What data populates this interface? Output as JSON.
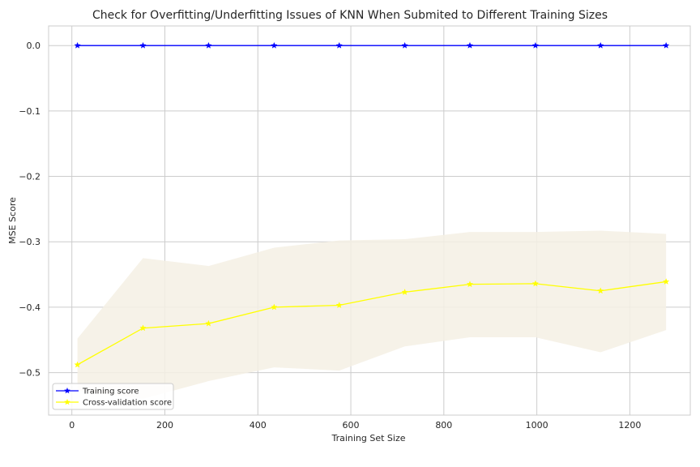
{
  "chart_data": {
    "type": "line",
    "title": "Check for Overfitting/Underfitting Issues of KNN When Submited to Different Training Sizes",
    "xlabel": "Training Set Size",
    "ylabel": "MSE Score",
    "xlim": [
      -50,
      1330
    ],
    "ylim": [
      -0.565,
      0.03
    ],
    "xticks": [
      0,
      200,
      400,
      600,
      800,
      1000,
      1200
    ],
    "yticks": [
      0.0,
      -0.1,
      -0.2,
      -0.3,
      -0.4,
      -0.5
    ],
    "xtick_labels": [
      "0",
      "200",
      "400",
      "600",
      "800",
      "1000",
      "1200"
    ],
    "ytick_labels": [
      "0.0",
      "−0.1",
      "−0.2",
      "−0.3",
      "−0.4",
      "−0.5"
    ],
    "grid": true,
    "legend_position": "lower-left",
    "x": [
      12,
      153,
      294,
      435,
      575,
      716,
      856,
      997,
      1137,
      1278
    ],
    "series": [
      {
        "name": "Training score",
        "color": "#0000ff",
        "marker": "star",
        "values": [
          0,
          0,
          0,
          0,
          0,
          0,
          0,
          0,
          0,
          0
        ]
      },
      {
        "name": "Cross-validation score",
        "color": "#ffff00",
        "marker": "star",
        "values": [
          -0.488,
          -0.432,
          -0.425,
          -0.4,
          -0.397,
          -0.377,
          -0.365,
          -0.364,
          -0.375,
          -0.361
        ],
        "band_upper": [
          -0.448,
          -0.325,
          -0.337,
          -0.309,
          -0.298,
          -0.296,
          -0.285,
          -0.285,
          -0.283,
          -0.288
        ],
        "band_lower": [
          -0.528,
          -0.54,
          -0.513,
          -0.492,
          -0.497,
          -0.46,
          -0.446,
          -0.446,
          -0.469,
          -0.435
        ],
        "band_color": "#f5f0e4"
      }
    ]
  }
}
